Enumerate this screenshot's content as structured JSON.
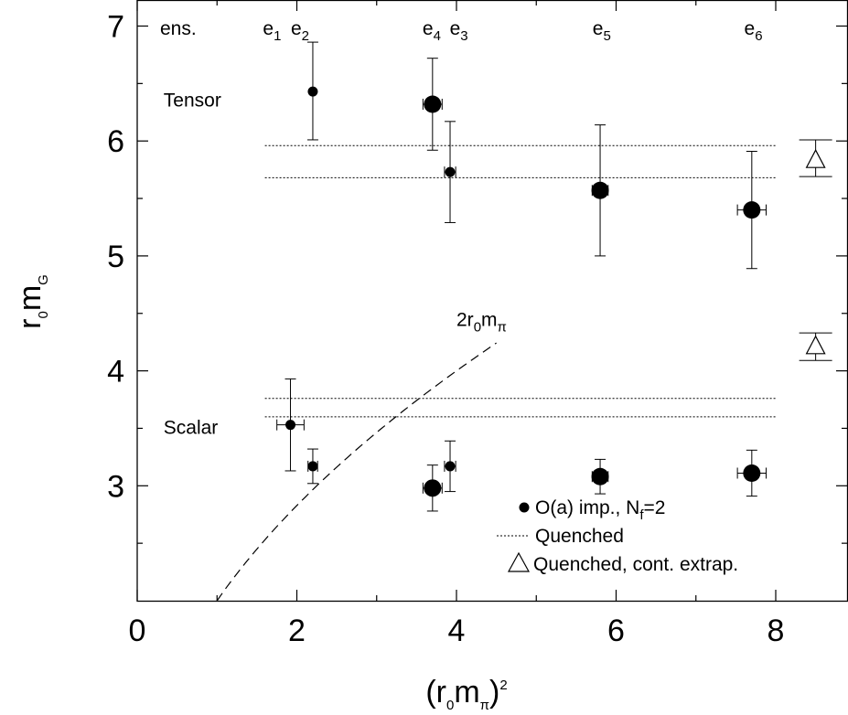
{
  "chart_data": {
    "type": "scatter",
    "xlim": [
      0,
      8.9
    ],
    "ylim": [
      2,
      7.2
    ],
    "x_ticks": [
      0,
      2,
      4,
      6,
      8
    ],
    "x_tick_labels": [
      "0",
      "2",
      "4",
      "6",
      "8"
    ],
    "x_minor_ticks": [
      1,
      3,
      5,
      7
    ],
    "y_ticks": [
      3,
      4,
      5,
      6,
      7
    ],
    "y_tick_labels": [
      "3",
      "4",
      "5",
      "6",
      "7"
    ],
    "y_minor_ticks": [
      2.5,
      3.5,
      4.5,
      5.5,
      6.5
    ],
    "xlabel": {
      "main": "(r",
      "sub1": "0",
      "mid": "m",
      "sub2": "π",
      "close": ")",
      "sup": "2"
    },
    "ylabel": {
      "main": "r",
      "sub1": "0",
      "mid": "m",
      "sub2": "G"
    },
    "grid": false,
    "ensemble_header": "ens.",
    "ensembles": [
      {
        "base": "e",
        "sub": "1",
        "x": 1.69
      },
      {
        "base": "e",
        "sub": "2",
        "x": 2.04
      },
      {
        "base": "e",
        "sub": "4",
        "x": 3.69
      },
      {
        "base": "e",
        "sub": "3",
        "x": 4.03
      },
      {
        "base": "e",
        "sub": "5",
        "x": 5.82
      },
      {
        "base": "e",
        "sub": "6",
        "x": 7.72
      }
    ],
    "group_labels": [
      {
        "text": "Tensor",
        "x": 0.33,
        "y": 6.3
      },
      {
        "text": "Scalar",
        "x": 0.33,
        "y": 3.45
      }
    ],
    "quenched_bands": [
      {
        "group": "Tensor",
        "y_upper": 5.96,
        "y_lower": 5.68,
        "x_range": [
          1.6,
          8.0
        ]
      },
      {
        "group": "Scalar",
        "y_upper": 3.76,
        "y_lower": 3.6,
        "x_range": [
          1.6,
          8.0
        ]
      }
    ],
    "series": [
      {
        "name": "O(a) imp., N_f=2",
        "marker": "filled-circle",
        "points": [
          {
            "ens": "e2",
            "group": "Tensor",
            "x": 2.2,
            "xerr": 0.0,
            "y": 6.43,
            "yerr_lo": 0.42,
            "yerr_hi": 0.43,
            "size": "small"
          },
          {
            "ens": "e4",
            "group": "Tensor",
            "x": 3.7,
            "xerr": 0.12,
            "y": 6.32,
            "yerr_lo": 0.4,
            "yerr_hi": 0.4,
            "size": "large"
          },
          {
            "ens": "e3",
            "group": "Tensor",
            "x": 3.92,
            "xerr": 0.07,
            "y": 5.73,
            "yerr_lo": 0.44,
            "yerr_hi": 0.44,
            "size": "small"
          },
          {
            "ens": "e5",
            "group": "Tensor",
            "x": 5.8,
            "xerr": 0.1,
            "y": 5.57,
            "yerr_lo": 0.57,
            "yerr_hi": 0.57,
            "size": "large"
          },
          {
            "ens": "e6",
            "group": "Tensor",
            "x": 7.7,
            "xerr": 0.18,
            "y": 5.4,
            "yerr_lo": 0.51,
            "yerr_hi": 0.51,
            "size": "large"
          },
          {
            "ens": "e1",
            "group": "Scalar",
            "x": 1.92,
            "xerr": 0.17,
            "y": 3.53,
            "yerr_lo": 0.4,
            "yerr_hi": 0.4,
            "size": "small"
          },
          {
            "ens": "e2",
            "group": "Scalar",
            "x": 2.2,
            "xerr": 0.06,
            "y": 3.17,
            "yerr_lo": 0.15,
            "yerr_hi": 0.15,
            "size": "small"
          },
          {
            "ens": "e4",
            "group": "Scalar",
            "x": 3.7,
            "xerr": 0.12,
            "y": 2.98,
            "yerr_lo": 0.2,
            "yerr_hi": 0.2,
            "size": "large"
          },
          {
            "ens": "e3",
            "group": "Scalar",
            "x": 3.92,
            "xerr": 0.07,
            "y": 3.17,
            "yerr_lo": 0.22,
            "yerr_hi": 0.22,
            "size": "small"
          },
          {
            "ens": "e5",
            "group": "Scalar",
            "x": 5.8,
            "xerr": 0.1,
            "y": 3.08,
            "yerr_lo": 0.15,
            "yerr_hi": 0.15,
            "size": "large"
          },
          {
            "ens": "e6",
            "group": "Scalar",
            "x": 7.7,
            "xerr": 0.18,
            "y": 3.11,
            "yerr_lo": 0.2,
            "yerr_hi": 0.2,
            "size": "large"
          }
        ]
      },
      {
        "name": "Quenched, cont. extrap.",
        "marker": "open-triangle",
        "points": [
          {
            "group": "Tensor",
            "x": 8.5,
            "y": 5.83,
            "yerr_lo": 0.14,
            "yerr_hi": 0.18
          },
          {
            "group": "Scalar",
            "x": 8.5,
            "y": 4.21,
            "yerr_lo": 0.12,
            "yerr_hi": 0.12
          }
        ]
      }
    ],
    "threshold_curve": {
      "label": {
        "main": "2r",
        "sub1": "0",
        "mid": "m",
        "sub2": "π"
      },
      "label_x": 4.0,
      "label_y": 4.39,
      "style": "dashed",
      "function": "2*sqrt(x)",
      "x_range": [
        1.0,
        4.5
      ]
    },
    "legend": {
      "placement": "bottom-right",
      "entries": [
        {
          "marker": "filled-circle",
          "text": "O(a) imp., N",
          "sub": "f",
          "tail": "=2"
        },
        {
          "marker": "dotted-line",
          "text": "Quenched",
          "sub": "",
          "tail": ""
        },
        {
          "marker": "open-triangle",
          "text": "Quenched, cont. extrap.",
          "sub": "",
          "tail": ""
        }
      ]
    }
  }
}
